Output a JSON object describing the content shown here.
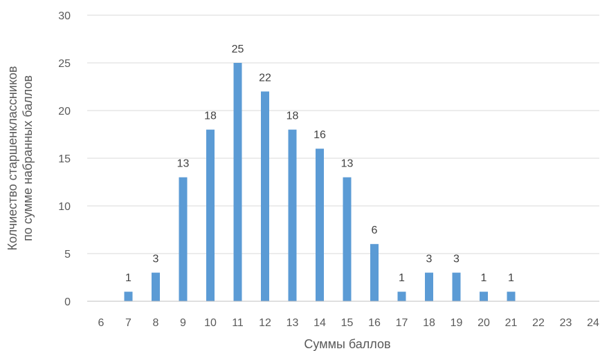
{
  "chart_data": {
    "type": "bar",
    "categories": [
      "6",
      "7",
      "8",
      "9",
      "10",
      "11",
      "12",
      "13",
      "14",
      "15",
      "16",
      "17",
      "18",
      "19",
      "20",
      "21",
      "22",
      "23",
      "24"
    ],
    "values": [
      0,
      1,
      3,
      13,
      18,
      25,
      22,
      18,
      16,
      13,
      6,
      1,
      3,
      3,
      1,
      1,
      0,
      0,
      0
    ],
    "data_labels": [
      "",
      "1",
      "3",
      "13",
      "18",
      "25",
      "22",
      "18",
      "16",
      "13",
      "6",
      "1",
      "3",
      "3",
      "1",
      "1",
      "",
      "",
      ""
    ],
    "xlabel": "Суммы баллов",
    "ylabel_lines": [
      "Колчиество старшенклассников",
      "по сумме набранных баллов"
    ],
    "ylim": [
      0,
      30
    ],
    "yticks": [
      "0",
      "5",
      "10",
      "15",
      "20",
      "25",
      "30"
    ],
    "grid": true,
    "colors": {
      "bar": "#5b9bd5",
      "grid": "#d9d9d9",
      "text": "#595959"
    }
  }
}
